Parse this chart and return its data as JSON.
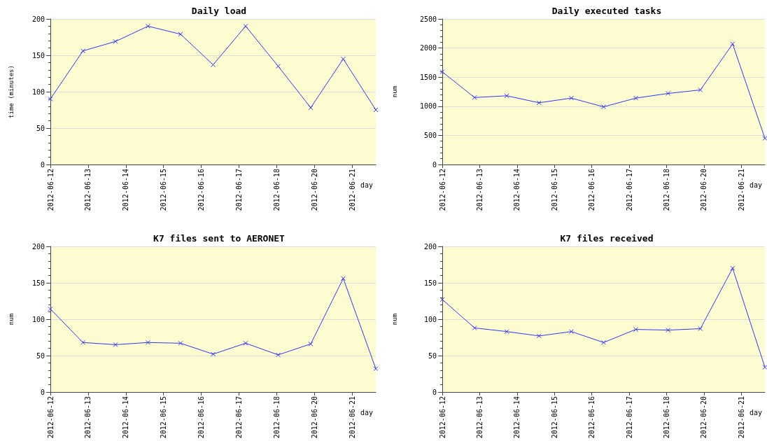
{
  "chart_data": [
    {
      "type": "line",
      "title": "Daily load",
      "xlabel": "day",
      "ylabel": "time (minutes)",
      "x": [
        "2012-06-12T00:00",
        "2012-06-12T20:43",
        "2012-06-13T17:25",
        "2012-06-14T14:08",
        "2012-06-15T10:51",
        "2012-06-16T07:34",
        "2012-06-17T04:16",
        "2012-06-18T00:59",
        "2012-06-18T21:42",
        "2012-06-19T18:24",
        "2012-06-20T15:07"
      ],
      "series": [
        {
          "color": "#3333ff",
          "values": [
            90,
            156,
            169,
            190,
            179,
            137,
            190,
            135,
            78,
            145,
            75
          ]
        }
      ],
      "xlim": [
        "2012-06-12T00:00",
        "2012-06-20T15:07"
      ],
      "xticks": [
        "2012-06-12",
        "2012-06-13",
        "2012-06-14",
        "2012-06-15",
        "2012-06-16",
        "2012-06-17",
        "2012-06-18",
        {
          "value": "2012-06-19",
          "label": "2012-06-20"
        },
        {
          "value": "2012-06-20",
          "label": "2012-06-21"
        }
      ],
      "ylim": [
        0,
        200
      ],
      "yticks": [
        0,
        50,
        100,
        150,
        200
      ],
      "grid": "y",
      "marker": "cross"
    },
    {
      "type": "line",
      "title": "Daily executed tasks",
      "xlabel": "day",
      "ylabel": "num",
      "x": [
        "2012-06-12T00:00",
        "2012-06-12T20:43",
        "2012-06-13T17:25",
        "2012-06-14T14:08",
        "2012-06-15T10:51",
        "2012-06-16T07:34",
        "2012-06-17T04:16",
        "2012-06-18T00:59",
        "2012-06-18T21:42",
        "2012-06-19T18:24",
        "2012-06-20T15:07"
      ],
      "series": [
        {
          "color": "#3333ff",
          "values": [
            1590,
            1150,
            1180,
            1060,
            1140,
            990,
            1140,
            1220,
            1280,
            2070,
            450
          ]
        }
      ],
      "xlim": [
        "2012-06-12T00:00",
        "2012-06-20T15:07"
      ],
      "xticks": [
        "2012-06-12",
        "2012-06-13",
        "2012-06-14",
        "2012-06-15",
        "2012-06-16",
        "2012-06-17",
        "2012-06-18",
        {
          "value": "2012-06-19",
          "label": "2012-06-20"
        },
        {
          "value": "2012-06-20",
          "label": "2012-06-21"
        }
      ],
      "ylim": [
        0,
        2500
      ],
      "yticks": [
        0,
        500,
        1000,
        1500,
        2000,
        2500
      ],
      "grid": "y",
      "marker": "cross"
    },
    {
      "type": "line",
      "title": "K7 files sent to AERONET",
      "xlabel": "day",
      "ylabel": "num",
      "x": [
        "2012-06-12T00:00",
        "2012-06-12T20:43",
        "2012-06-13T17:25",
        "2012-06-14T14:08",
        "2012-06-15T10:51",
        "2012-06-16T07:34",
        "2012-06-17T04:16",
        "2012-06-18T00:59",
        "2012-06-18T21:42",
        "2012-06-19T18:24",
        "2012-06-20T15:07"
      ],
      "series": [
        {
          "color": "#3333ff",
          "values": [
            114,
            68,
            65,
            68,
            67,
            52,
            67,
            51,
            66,
            156,
            32
          ]
        }
      ],
      "xlim": [
        "2012-06-12T00:00",
        "2012-06-20T15:07"
      ],
      "xticks": [
        "2012-06-12",
        "2012-06-13",
        "2012-06-14",
        "2012-06-15",
        "2012-06-16",
        "2012-06-17",
        "2012-06-18",
        {
          "value": "2012-06-19",
          "label": "2012-06-20"
        },
        {
          "value": "2012-06-20",
          "label": "2012-06-21"
        }
      ],
      "ylim": [
        0,
        200
      ],
      "yticks": [
        0,
        50,
        100,
        150,
        200
      ],
      "grid": "y",
      "marker": "cross"
    },
    {
      "type": "line",
      "title": "K7 files received",
      "xlabel": "day",
      "ylabel": "num",
      "x": [
        "2012-06-12T00:00",
        "2012-06-12T20:43",
        "2012-06-13T17:25",
        "2012-06-14T14:08",
        "2012-06-15T10:51",
        "2012-06-16T07:34",
        "2012-06-17T04:16",
        "2012-06-18T00:59",
        "2012-06-18T21:42",
        "2012-06-19T18:24",
        "2012-06-20T15:07"
      ],
      "series": [
        {
          "color": "#3333ff",
          "values": [
            127,
            88,
            83,
            77,
            83,
            68,
            86,
            85,
            87,
            170,
            34
          ]
        }
      ],
      "xlim": [
        "2012-06-12T00:00",
        "2012-06-20T15:07"
      ],
      "xticks": [
        "2012-06-12",
        "2012-06-13",
        "2012-06-14",
        "2012-06-15",
        "2012-06-16",
        "2012-06-17",
        "2012-06-18",
        {
          "value": "2012-06-19",
          "label": "2012-06-20"
        },
        {
          "value": "2012-06-20",
          "label": "2012-06-21"
        }
      ],
      "ylim": [
        0,
        200
      ],
      "yticks": [
        0,
        50,
        100,
        150,
        200
      ],
      "grid": "y",
      "marker": "cross"
    }
  ]
}
